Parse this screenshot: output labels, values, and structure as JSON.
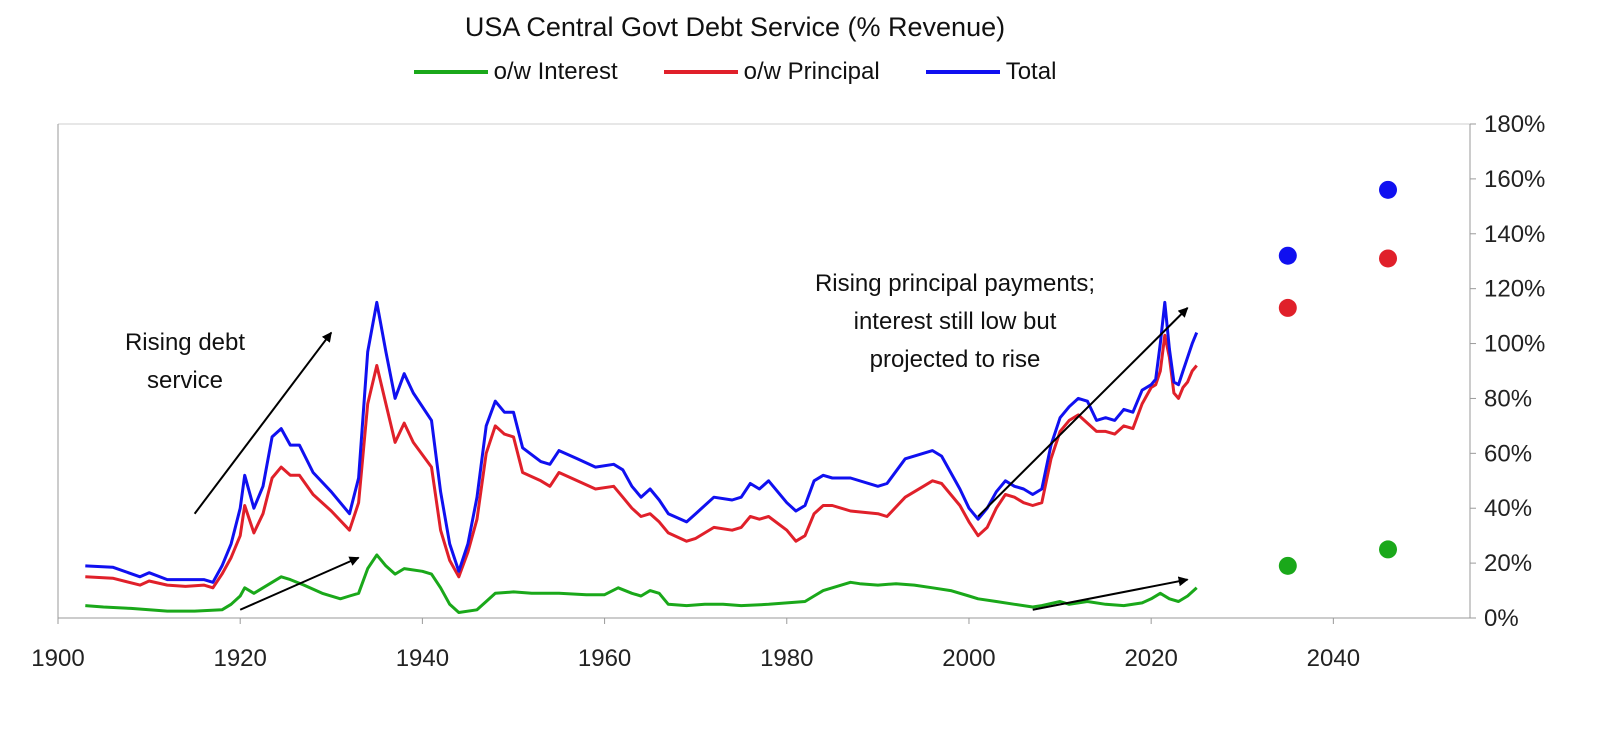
{
  "chart_data": {
    "type": "line",
    "title": "USA Central Govt Debt Service (% Revenue)",
    "xlabel": "",
    "ylabel": "",
    "xlim": [
      1900,
      2055
    ],
    "ylim": [
      0,
      180
    ],
    "x_ticks": [
      "1900",
      "1920",
      "1940",
      "1960",
      "1980",
      "2000",
      "2020",
      "2040"
    ],
    "y_ticks": [
      "0%",
      "20%",
      "40%",
      "60%",
      "80%",
      "100%",
      "120%",
      "140%",
      "160%",
      "180%"
    ],
    "y_axis_position": "right",
    "legend_position": "top",
    "colors": {
      "interest": "#1aa81a",
      "principal": "#e0202a",
      "total": "#1010f0"
    },
    "series": [
      {
        "name": "o/w Interest",
        "key": "interest",
        "points": [
          [
            1903,
            4.5
          ],
          [
            1905,
            4
          ],
          [
            1908,
            3.5
          ],
          [
            1910,
            3
          ],
          [
            1912,
            2.5
          ],
          [
            1915,
            2.5
          ],
          [
            1918,
            3
          ],
          [
            1919,
            5
          ],
          [
            1920,
            8
          ],
          [
            1920.5,
            11
          ],
          [
            1921.5,
            9
          ],
          [
            1922.5,
            11
          ],
          [
            1923.5,
            13
          ],
          [
            1924.5,
            15
          ],
          [
            1925.5,
            14
          ],
          [
            1927,
            12
          ],
          [
            1929,
            9
          ],
          [
            1931,
            7
          ],
          [
            1932,
            8
          ],
          [
            1933,
            9
          ],
          [
            1934,
            18
          ],
          [
            1935,
            23
          ],
          [
            1936,
            19
          ],
          [
            1937,
            16
          ],
          [
            1938,
            18
          ],
          [
            1940,
            17
          ],
          [
            1941,
            16
          ],
          [
            1942,
            11
          ],
          [
            1943,
            5
          ],
          [
            1944,
            2
          ],
          [
            1946,
            3
          ],
          [
            1947,
            6
          ],
          [
            1948,
            9
          ],
          [
            1950,
            9.5
          ],
          [
            1952,
            9
          ],
          [
            1955,
            9
          ],
          [
            1958,
            8.5
          ],
          [
            1960,
            8.5
          ],
          [
            1961.5,
            11
          ],
          [
            1963,
            9
          ],
          [
            1964,
            8
          ],
          [
            1965,
            10
          ],
          [
            1966,
            9
          ],
          [
            1967,
            5
          ],
          [
            1969,
            4.5
          ],
          [
            1971,
            5
          ],
          [
            1973,
            5
          ],
          [
            1975,
            4.5
          ],
          [
            1978,
            5
          ],
          [
            1980,
            5.5
          ],
          [
            1982,
            6
          ],
          [
            1983,
            8
          ],
          [
            1984,
            10
          ],
          [
            1986,
            12
          ],
          [
            1987,
            13
          ],
          [
            1988,
            12.5
          ],
          [
            1990,
            12
          ],
          [
            1992,
            12.5
          ],
          [
            1994,
            12
          ],
          [
            1996,
            11
          ],
          [
            1998,
            10
          ],
          [
            2000,
            8
          ],
          [
            2001,
            7
          ],
          [
            2003,
            6
          ],
          [
            2005,
            5
          ],
          [
            2007,
            4
          ],
          [
            2008,
            4.5
          ],
          [
            2010,
            6
          ],
          [
            2011,
            5
          ],
          [
            2013,
            6
          ],
          [
            2015,
            5
          ],
          [
            2017,
            4.5
          ],
          [
            2019,
            5.5
          ],
          [
            2020,
            7
          ],
          [
            2021,
            9
          ],
          [
            2022,
            7
          ],
          [
            2023,
            6
          ],
          [
            2024,
            8
          ],
          [
            2025,
            11
          ]
        ]
      },
      {
        "name": "o/w Principal",
        "key": "principal",
        "points": [
          [
            1903,
            15
          ],
          [
            1906,
            14.5
          ],
          [
            1909,
            12
          ],
          [
            1910,
            13.5
          ],
          [
            1912,
            12
          ],
          [
            1914,
            11.5
          ],
          [
            1916,
            12
          ],
          [
            1917,
            11
          ],
          [
            1918,
            16
          ],
          [
            1919,
            22
          ],
          [
            1920,
            30
          ],
          [
            1920.5,
            41
          ],
          [
            1921.5,
            31
          ],
          [
            1922.5,
            38
          ],
          [
            1923.5,
            51
          ],
          [
            1924.5,
            55
          ],
          [
            1925.5,
            52
          ],
          [
            1926.5,
            52
          ],
          [
            1928,
            45
          ],
          [
            1930,
            39
          ],
          [
            1932,
            32
          ],
          [
            1933,
            42
          ],
          [
            1934,
            78
          ],
          [
            1935,
            92
          ],
          [
            1936,
            78
          ],
          [
            1937,
            64
          ],
          [
            1938,
            71
          ],
          [
            1939,
            64
          ],
          [
            1941,
            55
          ],
          [
            1942,
            32
          ],
          [
            1943,
            21
          ],
          [
            1944,
            15
          ],
          [
            1945,
            24
          ],
          [
            1946,
            36
          ],
          [
            1947,
            60
          ],
          [
            1948,
            70
          ],
          [
            1949,
            67
          ],
          [
            1950,
            66
          ],
          [
            1951,
            53
          ],
          [
            1953,
            50
          ],
          [
            1954,
            48
          ],
          [
            1955,
            53
          ],
          [
            1957,
            50
          ],
          [
            1959,
            47
          ],
          [
            1961,
            48
          ],
          [
            1962,
            44
          ],
          [
            1963,
            40
          ],
          [
            1964,
            37
          ],
          [
            1965,
            38
          ],
          [
            1966,
            35
          ],
          [
            1967,
            31
          ],
          [
            1969,
            28
          ],
          [
            1970,
            29
          ],
          [
            1972,
            33
          ],
          [
            1974,
            32
          ],
          [
            1975,
            33
          ],
          [
            1976,
            37
          ],
          [
            1977,
            36
          ],
          [
            1978,
            37
          ],
          [
            1980,
            32
          ],
          [
            1981,
            28
          ],
          [
            1982,
            30
          ],
          [
            1983,
            38
          ],
          [
            1984,
            41
          ],
          [
            1985,
            41
          ],
          [
            1987,
            39
          ],
          [
            1990,
            38
          ],
          [
            1991,
            37
          ],
          [
            1993,
            44
          ],
          [
            1995,
            48
          ],
          [
            1996,
            50
          ],
          [
            1997,
            49
          ],
          [
            1999,
            41
          ],
          [
            2000,
            35
          ],
          [
            2001,
            30
          ],
          [
            2002,
            33
          ],
          [
            2003,
            40
          ],
          [
            2004,
            45
          ],
          [
            2005,
            44
          ],
          [
            2006,
            42
          ],
          [
            2007,
            41
          ],
          [
            2008,
            42
          ],
          [
            2009,
            58
          ],
          [
            2010,
            68
          ],
          [
            2011,
            72
          ],
          [
            2012,
            74
          ],
          [
            2013,
            71
          ],
          [
            2014,
            68
          ],
          [
            2015,
            68
          ],
          [
            2016,
            67
          ],
          [
            2017,
            70
          ],
          [
            2018,
            69
          ],
          [
            2019,
            78
          ],
          [
            2020,
            84
          ],
          [
            2020.5,
            85
          ],
          [
            2021,
            90
          ],
          [
            2021.5,
            103
          ],
          [
            2022,
            95
          ],
          [
            2022.5,
            82
          ],
          [
            2023,
            80
          ],
          [
            2023.5,
            84
          ],
          [
            2024,
            86
          ],
          [
            2024.5,
            90
          ],
          [
            2025,
            92
          ]
        ]
      },
      {
        "name": "Total",
        "key": "total",
        "points": [
          [
            1903,
            19
          ],
          [
            1906,
            18.5
          ],
          [
            1909,
            15
          ],
          [
            1910,
            16.5
          ],
          [
            1912,
            14
          ],
          [
            1914,
            14
          ],
          [
            1916,
            14
          ],
          [
            1917,
            13
          ],
          [
            1918,
            19
          ],
          [
            1919,
            27
          ],
          [
            1920,
            40
          ],
          [
            1920.5,
            52
          ],
          [
            1921.5,
            40
          ],
          [
            1922.5,
            48
          ],
          [
            1923.5,
            66
          ],
          [
            1924.5,
            69
          ],
          [
            1925.5,
            63
          ],
          [
            1926.5,
            63
          ],
          [
            1928,
            53
          ],
          [
            1930,
            46
          ],
          [
            1932,
            38
          ],
          [
            1933,
            51
          ],
          [
            1934,
            97
          ],
          [
            1935,
            115
          ],
          [
            1936,
            97
          ],
          [
            1937,
            80
          ],
          [
            1938,
            89
          ],
          [
            1939,
            82
          ],
          [
            1941,
            72
          ],
          [
            1942,
            46
          ],
          [
            1943,
            27
          ],
          [
            1944,
            17
          ],
          [
            1945,
            27
          ],
          [
            1946,
            44
          ],
          [
            1947,
            70
          ],
          [
            1948,
            79
          ],
          [
            1949,
            75
          ],
          [
            1950,
            75
          ],
          [
            1951,
            62
          ],
          [
            1953,
            57
          ],
          [
            1954,
            56
          ],
          [
            1955,
            61
          ],
          [
            1957,
            58
          ],
          [
            1959,
            55
          ],
          [
            1961,
            56
          ],
          [
            1962,
            54
          ],
          [
            1963,
            48
          ],
          [
            1964,
            44
          ],
          [
            1965,
            47
          ],
          [
            1966,
            43
          ],
          [
            1967,
            38
          ],
          [
            1969,
            35
          ],
          [
            1970,
            38
          ],
          [
            1972,
            44
          ],
          [
            1974,
            43
          ],
          [
            1975,
            44
          ],
          [
            1976,
            49
          ],
          [
            1977,
            47
          ],
          [
            1978,
            50
          ],
          [
            1980,
            42
          ],
          [
            1981,
            39
          ],
          [
            1982,
            41
          ],
          [
            1983,
            50
          ],
          [
            1984,
            52
          ],
          [
            1985,
            51
          ],
          [
            1987,
            51
          ],
          [
            1990,
            48
          ],
          [
            1991,
            49
          ],
          [
            1993,
            58
          ],
          [
            1995,
            60
          ],
          [
            1996,
            61
          ],
          [
            1997,
            59
          ],
          [
            1999,
            47
          ],
          [
            2000,
            40
          ],
          [
            2001,
            36
          ],
          [
            2002,
            40
          ],
          [
            2003,
            46
          ],
          [
            2004,
            50
          ],
          [
            2005,
            48
          ],
          [
            2006,
            47
          ],
          [
            2007,
            45
          ],
          [
            2008,
            47
          ],
          [
            2009,
            63
          ],
          [
            2010,
            73
          ],
          [
            2011,
            77
          ],
          [
            2012,
            80
          ],
          [
            2013,
            79
          ],
          [
            2014,
            72
          ],
          [
            2015,
            73
          ],
          [
            2016,
            72
          ],
          [
            2017,
            76
          ],
          [
            2018,
            75
          ],
          [
            2019,
            83
          ],
          [
            2020,
            85
          ],
          [
            2020.5,
            87
          ],
          [
            2021,
            100
          ],
          [
            2021.5,
            115
          ],
          [
            2022,
            98
          ],
          [
            2022.5,
            86
          ],
          [
            2023,
            85
          ],
          [
            2023.5,
            90
          ],
          [
            2024,
            95
          ],
          [
            2024.5,
            100
          ],
          [
            2025,
            104
          ]
        ]
      }
    ],
    "projections": [
      {
        "series": "Total",
        "key": "total",
        "x": 2035,
        "y": 132
      },
      {
        "series": "o/w Principal",
        "key": "principal",
        "x": 2035,
        "y": 113
      },
      {
        "series": "o/w Interest",
        "key": "interest",
        "x": 2035,
        "y": 19
      },
      {
        "series": "Total",
        "key": "total",
        "x": 2046,
        "y": 156
      },
      {
        "series": "o/w Principal",
        "key": "principal",
        "x": 2046,
        "y": 131
      },
      {
        "series": "o/w Interest",
        "key": "interest",
        "x": 2046,
        "y": 25
      }
    ],
    "annotations": [
      {
        "lines": [
          "Rising debt",
          "service"
        ]
      },
      {
        "lines": [
          "Rising principal payments;",
          "interest still low but",
          "projected to rise"
        ]
      }
    ],
    "arrows": [
      {
        "from": [
          1915,
          38
        ],
        "to": [
          1930,
          104
        ]
      },
      {
        "from": [
          1920,
          3
        ],
        "to": [
          1933,
          22
        ]
      },
      {
        "from": [
          2001,
          37
        ],
        "to": [
          2024,
          113
        ]
      },
      {
        "from": [
          2007,
          3
        ],
        "to": [
          2024,
          14
        ]
      }
    ]
  }
}
